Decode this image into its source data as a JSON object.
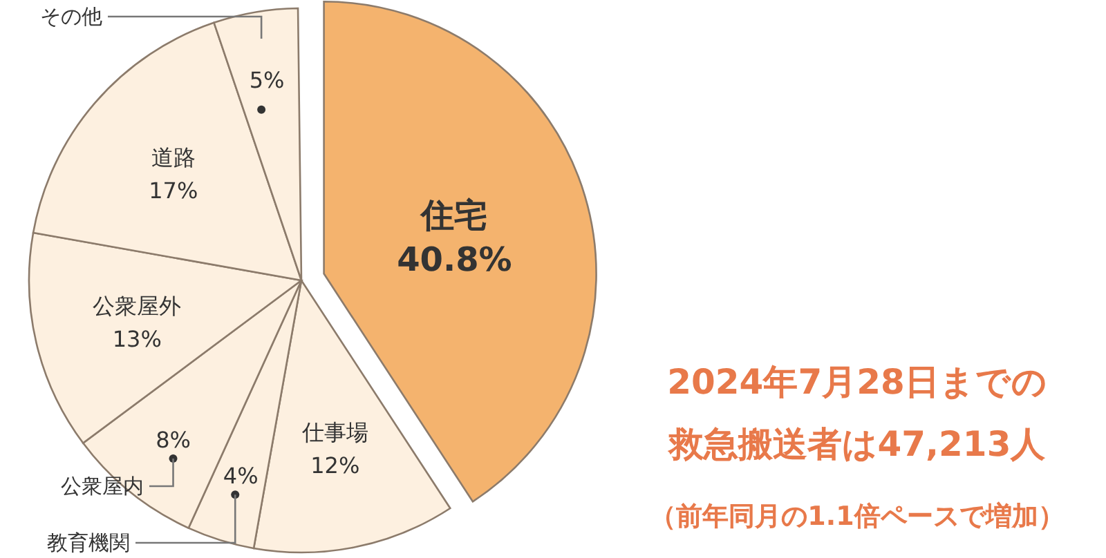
{
  "chart_data": {
    "type": "pie",
    "categories": [
      "住宅",
      "仕事場",
      "教育機関",
      "公衆屋内",
      "公衆屋外",
      "道路",
      "その他"
    ],
    "values": [
      40.8,
      12,
      4,
      8,
      13,
      17,
      5
    ],
    "colors": [
      "#f4b36e",
      "#fdf0e0",
      "#fdf0e0",
      "#fdf0e0",
      "#fdf0e0",
      "#fdf0e0",
      "#fdf0e0"
    ],
    "value_labels": [
      "40.8%",
      "12%",
      "4%",
      "8%",
      "13%",
      "17%",
      "5%"
    ],
    "annotations": [
      "2024年7月28日までの",
      "救急搬送者は47,213人",
      "（前年同月の1.1倍ペースで増加）"
    ]
  }
}
